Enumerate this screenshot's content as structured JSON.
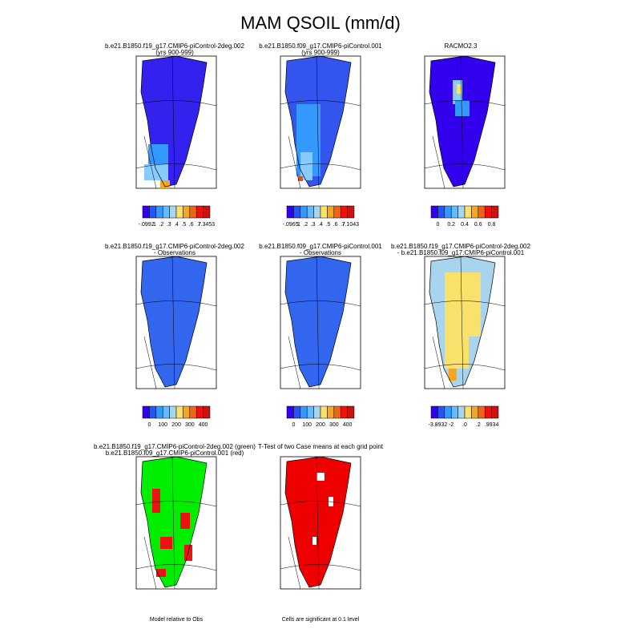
{
  "title": "MAM QSOIL (mm/d)",
  "panels": [
    {
      "title": [
        "b.e21.B1850.f19_g17.CMIP6-piControl-2deg.002",
        "(yrs 900-999)"
      ],
      "colorbar": [
        "-.0992",
        ".1",
        ".2",
        ".3",
        ".4",
        ".5",
        ".6",
        ".7",
        "7.3453"
      ]
    },
    {
      "title": [
        "b.e21.B1850.f09_g17.CMIP6-piControl.001",
        "(yrs 900-999)"
      ],
      "colorbar": [
        "-.0965",
        ".1",
        ".2",
        ".3",
        ".4",
        ".5",
        ".6",
        ".7",
        "7.1043"
      ]
    },
    {
      "title": [
        "RACMO2.3"
      ],
      "colorbar": [
        "0",
        "0.2",
        "0.4",
        "0.6",
        "0.8"
      ]
    },
    {
      "title": [
        "b.e21.B1850.f19_g17.CMIP6-piControl-2deg.002",
        "- Observations"
      ],
      "colorbar": [
        "0",
        "100",
        "200",
        "300",
        "400"
      ]
    },
    {
      "title": [
        "b.e21.B1850.f09_g17.CMIP6-piControl.001",
        "- Observations"
      ],
      "colorbar": [
        "0",
        "100",
        "200",
        "300",
        "400"
      ]
    },
    {
      "title": [
        "b.e21.B1850.f19_g17.CMIP6-piControl-2deg.002",
        "- b.e21.B1850.f09_g17.CMIP6-piControl.001"
      ],
      "colorbar": [
        "-3.8932",
        "-2",
        ".0",
        ".2",
        ".9934"
      ]
    },
    {
      "title": [
        "b.e21.B1850.f19_g17.CMIP6-piControl-2deg.002 (green)",
        "b.e21.B1850.f09_g17.CMIP6-piControl.001 (red)"
      ],
      "note": "Model relative to Obs"
    },
    {
      "title": [
        "T-Test of two Case means at each grid point"
      ],
      "note": "Cells are significant at 0.1 level"
    }
  ]
}
